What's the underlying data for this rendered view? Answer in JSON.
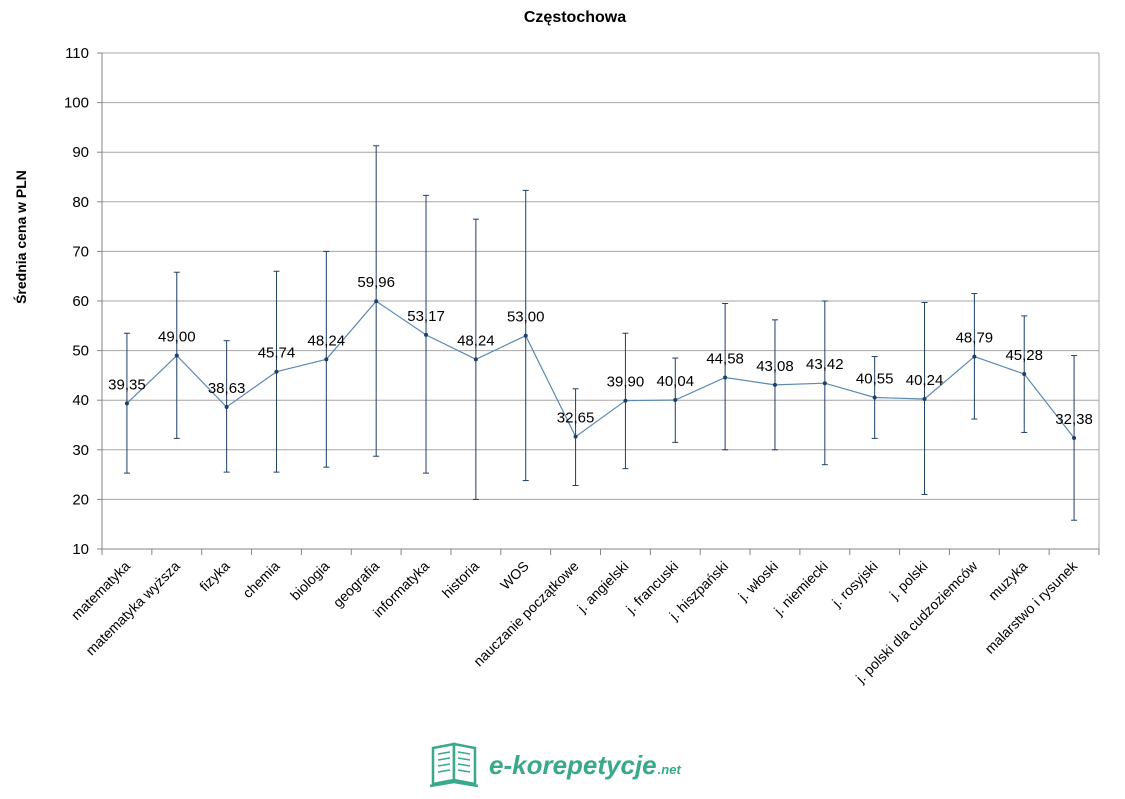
{
  "logo": {
    "word": "e-korepetycje",
    "suffix": ".net"
  },
  "colors": {
    "series": "#5b8ab5",
    "error_bar": "#1f3f66",
    "grid": "#a6a6a6",
    "axis": "#868686",
    "logo": "#3aa88a"
  },
  "chart_data": {
    "type": "line",
    "title": "Częstochowa",
    "xlabel": "",
    "ylabel": "Średnia cena w PLN",
    "ylim": [
      10,
      110
    ],
    "yticks": [
      10,
      20,
      30,
      40,
      50,
      60,
      70,
      80,
      90,
      100,
      110
    ],
    "grid": true,
    "categories": [
      "matematyka",
      "matematyka wyższa",
      "fizyka",
      "chemia",
      "biologia",
      "geografia",
      "informatyka",
      "historia",
      "WOS",
      "nauczanie początkowe",
      "j. angielski",
      "j. francuski",
      "j. hiszpański",
      "j. włoski",
      "j. niemiecki",
      "j. rosyjski",
      "j. polski",
      "j. polski dla cudzoziemców",
      "muzyka",
      "malarstwo i rysunek"
    ],
    "values": [
      39.35,
      49.0,
      38.63,
      45.74,
      48.24,
      59.96,
      53.17,
      48.24,
      53.0,
      32.65,
      39.9,
      40.04,
      44.58,
      43.08,
      43.42,
      40.55,
      40.24,
      48.79,
      45.28,
      32.38
    ],
    "value_labels": [
      "39,35",
      "49,00",
      "38,63",
      "45,74",
      "48,24",
      "59,96",
      "53,17",
      "48,24",
      "53,00",
      "32,65",
      "39,90",
      "40,04",
      "44,58",
      "43,08",
      "43,42",
      "40,55",
      "40,24",
      "48,79",
      "45,28",
      "32,38"
    ],
    "error_low": [
      25.3,
      32.3,
      25.5,
      25.5,
      26.5,
      28.7,
      25.3,
      20,
      23.8,
      22.8,
      26.2,
      31.5,
      30,
      30,
      27,
      32.3,
      21,
      36.2,
      33.5,
      15.8
    ],
    "error_high": [
      53.5,
      65.8,
      52,
      66,
      70,
      91.3,
      81.3,
      76.5,
      82.3,
      42.3,
      53.5,
      48.5,
      59.5,
      56.2,
      60,
      48.8,
      59.7,
      61.5,
      57,
      49
    ]
  }
}
